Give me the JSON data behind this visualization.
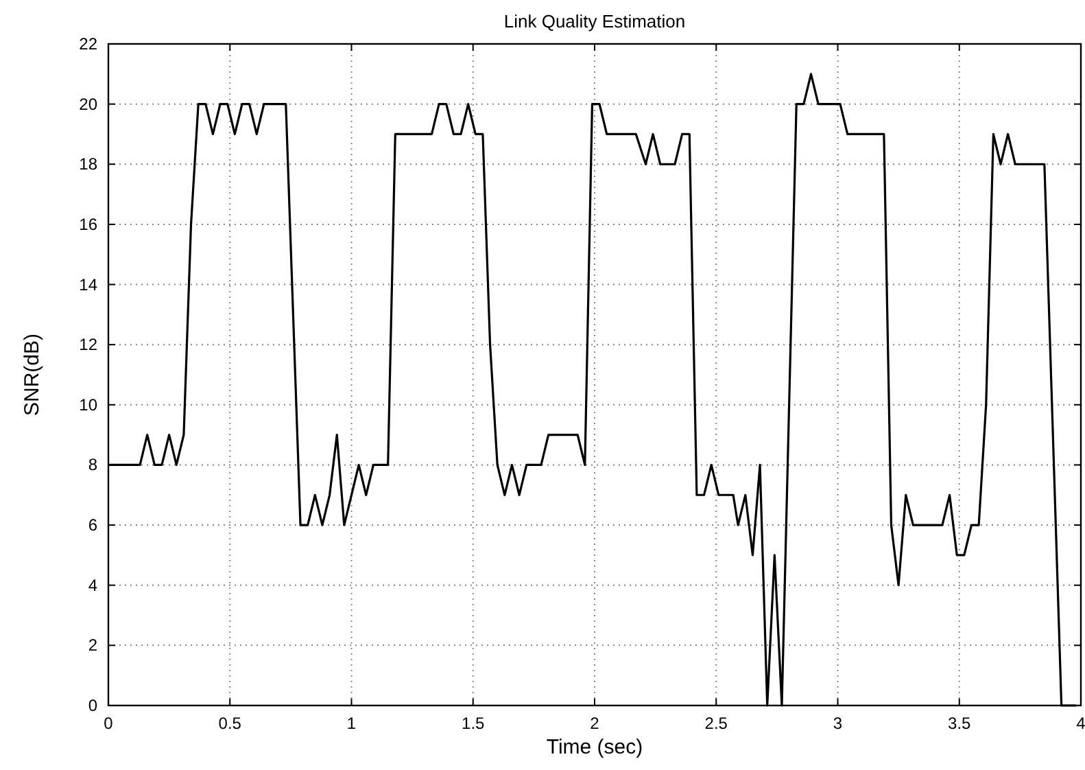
{
  "chart_data": {
    "type": "line",
    "title": "Link Quality Estimation",
    "xlabel": "Time (sec)",
    "ylabel": "SNR(dB)",
    "xlim": [
      0,
      4
    ],
    "xticks": [
      0,
      {
        "value": 0.5,
        "label": "0.5"
      },
      1,
      {
        "value": 1.5,
        "label": "1.5"
      },
      2,
      {
        "value": 2.5,
        "label": "2.5"
      },
      3,
      {
        "value": 3.5,
        "label": "3.5"
      },
      4
    ],
    "ylim": [
      0,
      22
    ],
    "yticks": [
      0,
      2,
      4,
      6,
      8,
      10,
      12,
      14,
      16,
      18,
      20,
      22
    ],
    "grid": true,
    "marker": "none",
    "line_style": "solid",
    "series": [
      {
        "color": "#000000",
        "x": [
          0,
          0.13,
          0.16,
          0.19,
          0.22,
          0.25,
          0.28,
          0.31,
          0.34,
          0.37,
          0.4,
          0.43,
          0.46,
          0.49,
          0.52,
          0.55,
          0.58,
          0.61,
          0.64,
          0.67,
          0.7,
          0.73,
          0.79,
          0.82,
          0.85,
          0.88,
          0.91,
          0.94,
          0.97,
          1.0,
          1.03,
          1.06,
          1.09,
          1.12,
          1.15,
          1.18,
          1.33,
          1.36,
          1.39,
          1.42,
          1.45,
          1.48,
          1.51,
          1.54,
          1.57,
          1.6,
          1.63,
          1.66,
          1.69,
          1.72,
          1.75,
          1.78,
          1.81,
          1.84,
          1.93,
          1.96,
          1.99,
          2.02,
          2.05,
          2.17,
          2.21,
          2.24,
          2.27,
          2.33,
          2.36,
          2.39,
          2.42,
          2.45,
          2.48,
          2.51,
          2.57,
          2.59,
          2.62,
          2.65,
          2.68,
          2.71,
          2.74,
          2.77,
          2.83,
          2.86,
          2.89,
          2.92,
          3.01,
          3.04,
          3.19,
          3.22,
          3.25,
          3.28,
          3.31,
          3.43,
          3.46,
          3.49,
          3.52,
          3.55,
          3.58,
          3.61,
          3.64,
          3.67,
          3.7,
          3.73,
          3.76,
          3.85,
          3.92,
          3.98
        ],
        "values": [
          8,
          8,
          9,
          8,
          8,
          9,
          8,
          9,
          16,
          20,
          20,
          19,
          20,
          20,
          19,
          20,
          20,
          19,
          20,
          20,
          20,
          20,
          6,
          6,
          7,
          6,
          7,
          9,
          6,
          7,
          8,
          7,
          8,
          8,
          8,
          19,
          19,
          20,
          20,
          19,
          19,
          20,
          19,
          19,
          12,
          8,
          7,
          8,
          7,
          8,
          8,
          8,
          9,
          9,
          9,
          8,
          20,
          20,
          19,
          19,
          18,
          19,
          18,
          18,
          19,
          19,
          7,
          7,
          8,
          7,
          7,
          6,
          7,
          5,
          8,
          0,
          5,
          0,
          20,
          20,
          21,
          20,
          20,
          19,
          19,
          6,
          4,
          7,
          6,
          6,
          7,
          5,
          5,
          6,
          6,
          10,
          19,
          18,
          19,
          18,
          18,
          18,
          0,
          0
        ]
      }
    ]
  }
}
